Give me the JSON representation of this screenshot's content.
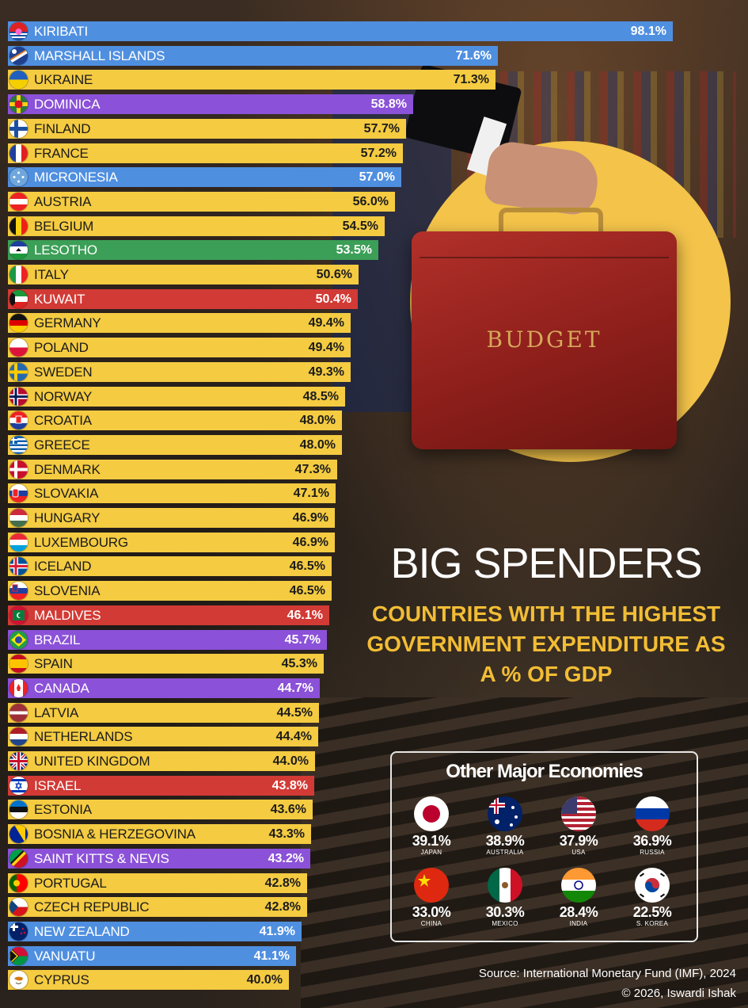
{
  "chart_data": {
    "type": "bar",
    "orientation": "horizontal",
    "title": "BIG SPENDERS",
    "subtitle": "COUNTRIES WITH THE HIGHEST GOVERNMENT EXPENDITURE AS A % OF GDP",
    "unit": "%",
    "bars": [
      {
        "label": "KIRIBATI",
        "value": 98.1,
        "display": "98.1%",
        "color": "blue"
      },
      {
        "label": "MARSHALL ISLANDS",
        "value": 71.6,
        "display": "71.6%",
        "color": "blue"
      },
      {
        "label": "UKRAINE",
        "value": 71.3,
        "display": "71.3%",
        "color": "yellow"
      },
      {
        "label": "DOMINICA",
        "value": 58.8,
        "display": "58.8%",
        "color": "purple"
      },
      {
        "label": "FINLAND",
        "value": 57.7,
        "display": "57.7%",
        "color": "yellow"
      },
      {
        "label": "FRANCE",
        "value": 57.2,
        "display": "57.2%",
        "color": "yellow"
      },
      {
        "label": "MICRONESIA",
        "value": 57.0,
        "display": "57.0%",
        "color": "blue"
      },
      {
        "label": "AUSTRIA",
        "value": 56.0,
        "display": "56.0%",
        "color": "yellow"
      },
      {
        "label": "BELGIUM",
        "value": 54.5,
        "display": "54.5%",
        "color": "yellow"
      },
      {
        "label": "LESOTHO",
        "value": 53.5,
        "display": "53.5%",
        "color": "green"
      },
      {
        "label": "ITALY",
        "value": 50.6,
        "display": "50.6%",
        "color": "yellow"
      },
      {
        "label": "KUWAIT",
        "value": 50.4,
        "display": "50.4%",
        "color": "red"
      },
      {
        "label": "GERMANY",
        "value": 49.4,
        "display": "49.4%",
        "color": "yellow"
      },
      {
        "label": "POLAND",
        "value": 49.4,
        "display": "49.4%",
        "color": "yellow"
      },
      {
        "label": "SWEDEN",
        "value": 49.3,
        "display": "49.3%",
        "color": "yellow"
      },
      {
        "label": "NORWAY",
        "value": 48.5,
        "display": "48.5%",
        "color": "yellow"
      },
      {
        "label": "CROATIA",
        "value": 48.0,
        "display": "48.0%",
        "color": "yellow"
      },
      {
        "label": "GREECE",
        "value": 48.0,
        "display": "48.0%",
        "color": "yellow"
      },
      {
        "label": "DENMARK",
        "value": 47.3,
        "display": "47.3%",
        "color": "yellow"
      },
      {
        "label": "SLOVAKIA",
        "value": 47.1,
        "display": "47.1%",
        "color": "yellow"
      },
      {
        "label": "HUNGARY",
        "value": 46.9,
        "display": "46.9%",
        "color": "yellow"
      },
      {
        "label": "LUXEMBOURG",
        "value": 46.9,
        "display": "46.9%",
        "color": "yellow"
      },
      {
        "label": "ICELAND",
        "value": 46.5,
        "display": "46.5%",
        "color": "yellow"
      },
      {
        "label": "SLOVENIA",
        "value": 46.5,
        "display": "46.5%",
        "color": "yellow"
      },
      {
        "label": "MALDIVES",
        "value": 46.1,
        "display": "46.1%",
        "color": "red"
      },
      {
        "label": "BRAZIL",
        "value": 45.7,
        "display": "45.7%",
        "color": "purple"
      },
      {
        "label": "SPAIN",
        "value": 45.3,
        "display": "45.3%",
        "color": "yellow"
      },
      {
        "label": "CANADA",
        "value": 44.7,
        "display": "44.7%",
        "color": "purple"
      },
      {
        "label": "LATVIA",
        "value": 44.5,
        "display": "44.5%",
        "color": "yellow"
      },
      {
        "label": "NETHERLANDS",
        "value": 44.4,
        "display": "44.4%",
        "color": "yellow"
      },
      {
        "label": "UNITED KINGDOM",
        "value": 44.0,
        "display": "44.0%",
        "color": "yellow"
      },
      {
        "label": "ISRAEL",
        "value": 43.8,
        "display": "43.8%",
        "color": "red"
      },
      {
        "label": "ESTONIA",
        "value": 43.6,
        "display": "43.6%",
        "color": "yellow"
      },
      {
        "label": "BOSNIA & HERZEGOVINA",
        "value": 43.3,
        "display": "43.3%",
        "color": "yellow"
      },
      {
        "label": "SAINT KITTS & NEVIS",
        "value": 43.2,
        "display": "43.2%",
        "color": "purple"
      },
      {
        "label": "PORTUGAL",
        "value": 42.8,
        "display": "42.8%",
        "color": "yellow"
      },
      {
        "label": "CZECH REPUBLIC",
        "value": 42.8,
        "display": "42.8%",
        "color": "yellow"
      },
      {
        "label": "NEW ZEALAND",
        "value": 41.9,
        "display": "41.9%",
        "color": "blue"
      },
      {
        "label": "VANUATU",
        "value": 41.1,
        "display": "41.1%",
        "color": "blue"
      },
      {
        "label": "CYPRUS",
        "value": 40.0,
        "display": "40.0%",
        "color": "yellow"
      }
    ],
    "colors": {
      "yellow": "#f4cb41",
      "blue": "#4f8fe0",
      "purple": "#8b51d8",
      "red": "#d23a35",
      "green": "#3c9f57"
    }
  },
  "other_economies": {
    "title": "Other Major Economies",
    "items": [
      {
        "name": "JAPAN",
        "display": "39.1%",
        "value": 39.1,
        "icon": "japan-flag"
      },
      {
        "name": "AUSTRALIA",
        "display": "38.9%",
        "value": 38.9,
        "icon": "australia-flag"
      },
      {
        "name": "USA",
        "display": "37.9%",
        "value": 37.9,
        "icon": "usa-flag"
      },
      {
        "name": "RUSSIA",
        "display": "36.9%",
        "value": 36.9,
        "icon": "russia-flag"
      },
      {
        "name": "CHINA",
        "display": "33.0%",
        "value": 33.0,
        "icon": "china-flag"
      },
      {
        "name": "MEXICO",
        "display": "30.3%",
        "value": 30.3,
        "icon": "mexico-flag"
      },
      {
        "name": "INDIA",
        "display": "28.4%",
        "value": 28.4,
        "icon": "india-flag"
      },
      {
        "name": "S. KOREA",
        "display": "22.5%",
        "value": 22.5,
        "icon": "south-korea-flag"
      }
    ]
  },
  "illustration": {
    "briefcase_label": "BUDGET"
  },
  "footer": {
    "source": "Source: International Monetary Fund (IMF), 2024",
    "copyright": "© 2026, Iswardi Ishak"
  }
}
